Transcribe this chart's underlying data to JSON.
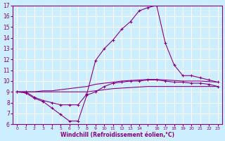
{
  "xlabel": "Windchill (Refroidissement éolien,°C)",
  "bg_color": "#cceeff",
  "grid_color": "#ffffff",
  "line_color": "#880088",
  "xlim": [
    -0.5,
    23.5
  ],
  "ylim": [
    6,
    17
  ],
  "xtick_labels": [
    "0",
    "1",
    "2",
    "3",
    "4",
    "5",
    "6",
    "7",
    "8",
    "9",
    "10",
    "11",
    "12",
    "13",
    "14",
    "",
    "16",
    "17",
    "18",
    "19",
    "20",
    "21",
    "22",
    "23"
  ],
  "xtick_positions": [
    0,
    1,
    2,
    3,
    4,
    5,
    6,
    7,
    8,
    9,
    10,
    11,
    12,
    13,
    14,
    15,
    16,
    17,
    18,
    19,
    20,
    21,
    22,
    23
  ],
  "yticks": [
    6,
    7,
    8,
    9,
    10,
    11,
    12,
    13,
    14,
    15,
    16,
    17
  ],
  "series": [
    {
      "x": [
        0,
        1,
        2,
        3,
        4,
        5,
        6,
        7,
        8,
        9,
        10,
        11,
        12,
        13,
        14,
        15,
        16,
        17,
        18,
        19,
        20,
        21,
        22,
        23
      ],
      "y": [
        9.0,
        9.0,
        8.5,
        8.2,
        8.0,
        7.8,
        7.8,
        7.8,
        8.8,
        11.9,
        13.0,
        13.8,
        14.8,
        15.5,
        16.5,
        16.8,
        17.0,
        13.5,
        11.5,
        10.5,
        10.5,
        10.3,
        10.1,
        9.9
      ],
      "marker": true
    },
    {
      "x": [
        0,
        1,
        2,
        3,
        4,
        5,
        6,
        7,
        8,
        9,
        10,
        11,
        12,
        13,
        14,
        15,
        16,
        17,
        18,
        19,
        20,
        21,
        22,
        23
      ],
      "y": [
        9.0,
        9.0,
        9.0,
        9.1,
        9.1,
        9.2,
        9.3,
        9.4,
        9.5,
        9.7,
        9.8,
        9.9,
        10.0,
        10.05,
        10.1,
        10.15,
        10.15,
        10.1,
        10.05,
        10.0,
        10.0,
        10.0,
        9.95,
        9.9
      ],
      "marker": false
    },
    {
      "x": [
        0,
        1,
        2,
        3,
        4,
        5,
        6,
        7,
        8,
        9,
        10,
        11,
        12,
        13,
        14,
        15,
        16,
        17,
        18,
        19,
        20,
        21,
        22,
        23
      ],
      "y": [
        9.0,
        9.0,
        9.0,
        9.0,
        9.0,
        9.0,
        9.0,
        9.0,
        9.0,
        9.1,
        9.2,
        9.3,
        9.35,
        9.4,
        9.45,
        9.5,
        9.5,
        9.5,
        9.5,
        9.5,
        9.5,
        9.5,
        9.5,
        9.5
      ],
      "marker": false
    },
    {
      "x": [
        0,
        1,
        2,
        3,
        4,
        5,
        6,
        7,
        8,
        9,
        10,
        11,
        12,
        13,
        14,
        15,
        16,
        17,
        18,
        19,
        20,
        21,
        22,
        23
      ],
      "y": [
        9.0,
        8.9,
        8.4,
        8.1,
        7.5,
        6.9,
        6.3,
        6.3,
        8.7,
        9.0,
        9.5,
        9.8,
        9.9,
        10.0,
        10.0,
        10.1,
        10.1,
        10.0,
        9.9,
        9.9,
        9.8,
        9.8,
        9.7,
        9.5
      ],
      "marker": true
    }
  ]
}
